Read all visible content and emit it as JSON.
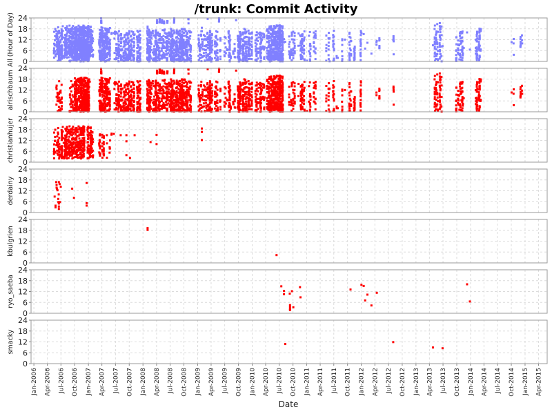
{
  "chart_data": {
    "type": "scatter",
    "title": "/trunk: Commit Activity",
    "xlabel": "Date",
    "xlim": [
      "2005-12-13",
      "2015-05-29"
    ],
    "ylim": [
      0,
      24
    ],
    "yticks": [
      0,
      6,
      12,
      18,
      24
    ],
    "xticks": [
      "Jan-2006",
      "Apr-2006",
      "Jul-2006",
      "Oct-2006",
      "Jan-2007",
      "Apr-2007",
      "Jul-2007",
      "Oct-2007",
      "Jan-2008",
      "Apr-2008",
      "Jul-2008",
      "Oct-2008",
      "Jan-2009",
      "Apr-2009",
      "Jul-2009",
      "Oct-2009",
      "Jan-2010",
      "Apr-2010",
      "Jul-2010",
      "Oct-2010",
      "Jan-2011",
      "Apr-2011",
      "Jul-2011",
      "Oct-2011",
      "Jan-2012",
      "Apr-2012",
      "Jul-2012",
      "Oct-2012",
      "Jan-2013",
      "Apr-2013",
      "Jul-2013",
      "Oct-2013",
      "Jan-2014",
      "Apr-2014",
      "Jul-2014",
      "Oct-2014",
      "Jan-2015",
      "Apr-2015"
    ],
    "grid": true,
    "all_panel": {
      "ylabel": "All (Hour of Day)",
      "color": "#8080ff"
    },
    "series": [
      {
        "name": "alrischbaum",
        "color": "#ff0000",
        "clusters": [
          {
            "from": "2006-05-20",
            "to": "2006-07-06",
            "hours": [
              0,
              17
            ],
            "commits": 40
          },
          {
            "from": "2006-08-22",
            "to": "2006-10-01",
            "hours": [
              0,
              17
            ],
            "commits": 30
          },
          {
            "from": "2006-10-01",
            "to": "2007-01-10",
            "hours": [
              0,
              19
            ],
            "commits": 420
          },
          {
            "from": "2007-03-13",
            "to": "2007-05-27",
            "hours": [
              0,
              19
            ],
            "commits": 200
          },
          {
            "from": "2007-03-13",
            "to": "2007-05-27",
            "hours": [
              21,
              24
            ],
            "commits": 6
          },
          {
            "from": "2007-06-24",
            "to": "2007-12-21",
            "hours": [
              0,
              17
            ],
            "commits": 260
          },
          {
            "from": "2008-01-28",
            "to": "2008-11-19",
            "hours": [
              0,
              18
            ],
            "commits": 620
          },
          {
            "from": "2008-04-01",
            "to": "2008-11-19",
            "hours": [
              21,
              24
            ],
            "commits": 45
          },
          {
            "from": "2009-01-04",
            "to": "2009-06-04",
            "hours": [
              0,
              17
            ],
            "commits": 180
          },
          {
            "from": "2009-03-01",
            "to": "2009-12-01",
            "hours": [
              22,
              24
            ],
            "commits": 10
          },
          {
            "from": "2009-06-28",
            "to": "2009-12-31",
            "hours": [
              0,
              18
            ],
            "commits": 240
          },
          {
            "from": "2010-01-22",
            "to": "2010-03-27",
            "hours": [
              0,
              17
            ],
            "commits": 80
          },
          {
            "from": "2010-04-10",
            "to": "2010-07-25",
            "hours": [
              0,
              20
            ],
            "commits": 380
          },
          {
            "from": "2010-08-17",
            "to": "2011-04-05",
            "hours": [
              0,
              17
            ],
            "commits": 120
          },
          {
            "from": "2011-04-28",
            "to": "2012-01-09",
            "hours": [
              0,
              17
            ],
            "commits": 90
          },
          {
            "from": "2012-04-10",
            "to": "2012-08-27",
            "hours": [
              3,
              16
            ],
            "commits": 14
          },
          {
            "from": "2013-05-06",
            "to": "2013-06-22",
            "hours": [
              0,
              23
            ],
            "commits": 70
          },
          {
            "from": "2013-09-24",
            "to": "2013-11-18",
            "hours": [
              0,
              17
            ],
            "commits": 60
          },
          {
            "from": "2014-02-01",
            "to": "2014-03-17",
            "hours": [
              0,
              19
            ],
            "commits": 60
          },
          {
            "from": "2014-09-28",
            "to": "2014-12-28",
            "hours": [
              3,
              17
            ],
            "commits": 14
          }
        ],
        "points": []
      },
      {
        "name": "christianhujer",
        "color": "#ff0000",
        "clusters": [
          {
            "from": "2006-05-15",
            "to": "2007-01-31",
            "hours": [
              2,
              20
            ],
            "commits": 480
          },
          {
            "from": "2007-03-10",
            "to": "2007-06-10",
            "hours": [
              2,
              16
            ],
            "commits": 50
          }
        ],
        "points": [
          [
            "2007-06-20",
            15.6
          ],
          [
            "2007-08-05",
            14.9
          ],
          [
            "2007-09-12",
            14.9
          ],
          [
            "2007-09-12",
            11.5
          ],
          [
            "2007-09-12",
            3.9
          ],
          [
            "2007-10-06",
            2.3
          ],
          [
            "2007-11-06",
            14.9
          ],
          [
            "2008-02-21",
            11.1
          ],
          [
            "2008-04-01",
            15.1
          ],
          [
            "2008-04-01",
            10.0
          ],
          [
            "2009-01-29",
            18.6
          ],
          [
            "2009-01-29",
            16.7
          ],
          [
            "2009-01-29",
            12.2
          ]
        ]
      },
      {
        "name": "derdainy",
        "color": "#ff0000",
        "clusters": [],
        "points": [
          [
            "2006-05-30",
            16.8
          ],
          [
            "2006-06-17",
            16.8
          ],
          [
            "2006-06-02",
            15.2
          ],
          [
            "2006-06-22",
            15.7
          ],
          [
            "2006-06-30",
            14.2
          ],
          [
            "2006-06-02",
            13.7
          ],
          [
            "2006-06-04",
            13.2
          ],
          [
            "2006-06-08",
            12.3
          ],
          [
            "2006-09-14",
            13.2
          ],
          [
            "2006-12-20",
            16.3
          ],
          [
            "2006-06-16",
            10.0
          ],
          [
            "2006-05-20",
            8.8
          ],
          [
            "2006-09-26",
            8.1
          ],
          [
            "2006-06-13",
            7.5
          ],
          [
            "2006-06-14",
            5.8
          ],
          [
            "2006-06-25",
            5.8
          ],
          [
            "2006-12-20",
            5.2
          ],
          [
            "2006-12-20",
            3.8
          ],
          [
            "2006-05-26",
            3.8
          ],
          [
            "2006-05-26",
            2.8
          ],
          [
            "2006-06-17",
            5.0
          ],
          [
            "2006-06-17",
            3.3
          ],
          [
            "2006-06-17",
            2.0
          ]
        ]
      },
      {
        "name": "kbulgrien",
        "color": "#ff0000",
        "clusters": [],
        "points": [
          [
            "2008-02-01",
            19.2
          ],
          [
            "2008-02-01",
            18.2
          ],
          [
            "2010-06-13",
            4.3
          ]
        ]
      },
      {
        "name": "ryo_saeba",
        "color": "#ff0000",
        "clusters": [],
        "points": [
          [
            "2010-07-15",
            14.9
          ],
          [
            "2010-08-02",
            12.3
          ],
          [
            "2010-08-02",
            10.5
          ],
          [
            "2010-09-09",
            10.8
          ],
          [
            "2010-09-24",
            12.2
          ],
          [
            "2010-11-17",
            14.4
          ],
          [
            "2010-11-20",
            8.8
          ],
          [
            "2010-09-11",
            4.5
          ],
          [
            "2010-09-11",
            3.4
          ],
          [
            "2010-09-11",
            2.4
          ],
          [
            "2010-09-11",
            1.8
          ],
          [
            "2010-10-03",
            3.3
          ],
          [
            "2011-10-21",
            13.1
          ],
          [
            "2012-01-02",
            15.7
          ],
          [
            "2012-01-17",
            15.1
          ],
          [
            "2012-02-11",
            10.3
          ],
          [
            "2012-01-27",
            7.1
          ],
          [
            "2012-03-09",
            4.3
          ],
          [
            "2012-04-14",
            11.3
          ],
          [
            "2013-12-09",
            16.0
          ],
          [
            "2013-12-28",
            6.5
          ]
        ]
      },
      {
        "name": "smacky",
        "color": "#ff0000",
        "clusters": [],
        "points": [
          [
            "2010-08-10",
            10.8
          ],
          [
            "2012-08-02",
            11.9
          ],
          [
            "2013-04-25",
            8.9
          ],
          [
            "2013-06-28",
            8.5
          ]
        ]
      }
    ]
  }
}
